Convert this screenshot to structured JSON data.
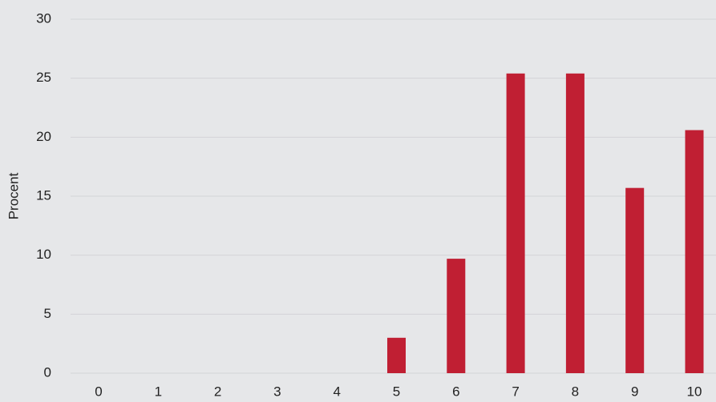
{
  "chart_data": {
    "type": "bar",
    "y_label": "Procent",
    "categories": [
      "0",
      "1",
      "2",
      "3",
      "4",
      "5",
      "6",
      "7",
      "8",
      "9",
      "10"
    ],
    "values": [
      0,
      0,
      0,
      0,
      0,
      3,
      9.7,
      25.4,
      25.4,
      15.7,
      20.6
    ],
    "color": "#c01f33",
    "ylim": [
      0,
      30
    ],
    "yticks": [
      0,
      5,
      10,
      15,
      20,
      25,
      30
    ],
    "grid": true
  }
}
